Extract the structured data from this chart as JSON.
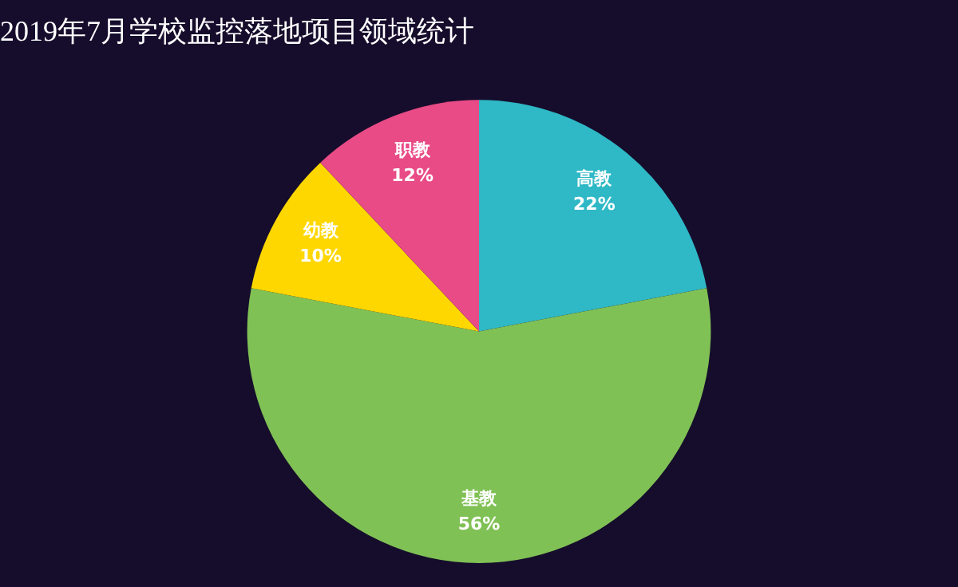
{
  "chart_data": {
    "type": "pie",
    "title": "2019年7月学校监控落地项目领域统计",
    "categories": [
      "高教",
      "基教",
      "幼教",
      "职教"
    ],
    "values": [
      22,
      56,
      10,
      12
    ],
    "colors": [
      "#2fb8c6",
      "#80c155",
      "#ffd700",
      "#e84b86"
    ],
    "value_labels": [
      "22%",
      "56%",
      "10%",
      "12%"
    ],
    "legend": false
  }
}
